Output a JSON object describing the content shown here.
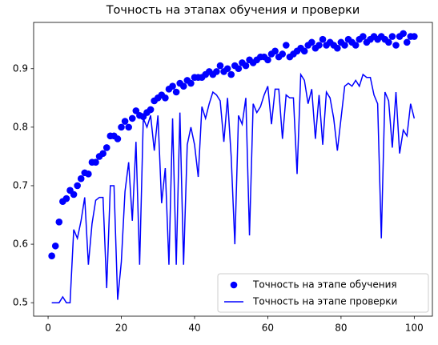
{
  "chart_data": {
    "type": "line",
    "title": "Точность на этапах обучения и проверки",
    "x": [
      1,
      2,
      3,
      4,
      5,
      6,
      7,
      8,
      9,
      10,
      11,
      12,
      13,
      14,
      15,
      16,
      17,
      18,
      19,
      20,
      21,
      22,
      23,
      24,
      25,
      26,
      27,
      28,
      29,
      30,
      31,
      32,
      33,
      34,
      35,
      36,
      37,
      38,
      39,
      40,
      41,
      42,
      43,
      44,
      45,
      46,
      47,
      48,
      49,
      50,
      51,
      52,
      53,
      54,
      55,
      56,
      57,
      58,
      59,
      60,
      61,
      62,
      63,
      64,
      65,
      66,
      67,
      68,
      69,
      70,
      71,
      72,
      73,
      74,
      75,
      76,
      77,
      78,
      79,
      80,
      81,
      82,
      83,
      84,
      85,
      86,
      87,
      88,
      89,
      90,
      91,
      92,
      93,
      94,
      95,
      96,
      97,
      98,
      99,
      100
    ],
    "series": [
      {
        "name": "Точность на этапе обучения",
        "color": "#0000ff",
        "mode": "markers",
        "values": [
          0.58,
          0.597,
          0.638,
          0.673,
          0.678,
          0.692,
          0.685,
          0.7,
          0.712,
          0.722,
          0.72,
          0.74,
          0.74,
          0.75,
          0.755,
          0.765,
          0.785,
          0.785,
          0.78,
          0.8,
          0.81,
          0.8,
          0.815,
          0.828,
          0.82,
          0.818,
          0.825,
          0.83,
          0.845,
          0.85,
          0.855,
          0.85,
          0.865,
          0.87,
          0.86,
          0.875,
          0.87,
          0.88,
          0.875,
          0.885,
          0.885,
          0.885,
          0.89,
          0.895,
          0.89,
          0.895,
          0.905,
          0.895,
          0.9,
          0.89,
          0.905,
          0.9,
          0.91,
          0.905,
          0.915,
          0.91,
          0.915,
          0.92,
          0.92,
          0.915,
          0.925,
          0.93,
          0.92,
          0.925,
          0.94,
          0.92,
          0.925,
          0.93,
          0.935,
          0.93,
          0.94,
          0.945,
          0.935,
          0.94,
          0.95,
          0.94,
          0.945,
          0.94,
          0.935,
          0.945,
          0.94,
          0.95,
          0.945,
          0.94,
          0.95,
          0.955,
          0.945,
          0.95,
          0.955,
          0.95,
          0.955,
          0.95,
          0.945,
          0.955,
          0.94,
          0.955,
          0.96,
          0.945,
          0.955,
          0.955
        ]
      },
      {
        "name": "Точность на этапе проверки",
        "color": "#0000ff",
        "mode": "lines",
        "values": [
          0.5,
          0.5,
          0.5,
          0.51,
          0.5,
          0.5,
          0.625,
          0.61,
          0.64,
          0.68,
          0.565,
          0.635,
          0.675,
          0.68,
          0.68,
          0.525,
          0.7,
          0.7,
          0.505,
          0.57,
          0.69,
          0.74,
          0.64,
          0.775,
          0.565,
          0.815,
          0.8,
          0.82,
          0.76,
          0.82,
          0.67,
          0.73,
          0.565,
          0.815,
          0.565,
          0.825,
          0.565,
          0.77,
          0.8,
          0.77,
          0.715,
          0.835,
          0.815,
          0.84,
          0.86,
          0.855,
          0.845,
          0.775,
          0.85,
          0.75,
          0.6,
          0.82,
          0.805,
          0.85,
          0.615,
          0.84,
          0.825,
          0.835,
          0.855,
          0.87,
          0.805,
          0.865,
          0.865,
          0.78,
          0.855,
          0.85,
          0.85,
          0.72,
          0.89,
          0.88,
          0.84,
          0.865,
          0.78,
          0.855,
          0.77,
          0.86,
          0.85,
          0.815,
          0.76,
          0.815,
          0.87,
          0.875,
          0.87,
          0.88,
          0.87,
          0.89,
          0.885,
          0.885,
          0.855,
          0.84,
          0.61,
          0.86,
          0.845,
          0.765,
          0.86,
          0.755,
          0.795,
          0.785,
          0.84,
          0.815
        ]
      }
    ],
    "xlim": [
      -3.95,
      104.95
    ],
    "xticks": [
      0,
      20,
      40,
      60,
      80,
      100
    ],
    "ylim": [
      0.477,
      0.979
    ],
    "yticks": [
      0.5,
      0.6,
      0.7,
      0.8,
      0.9
    ],
    "legend": "lower right",
    "grid": false
  }
}
